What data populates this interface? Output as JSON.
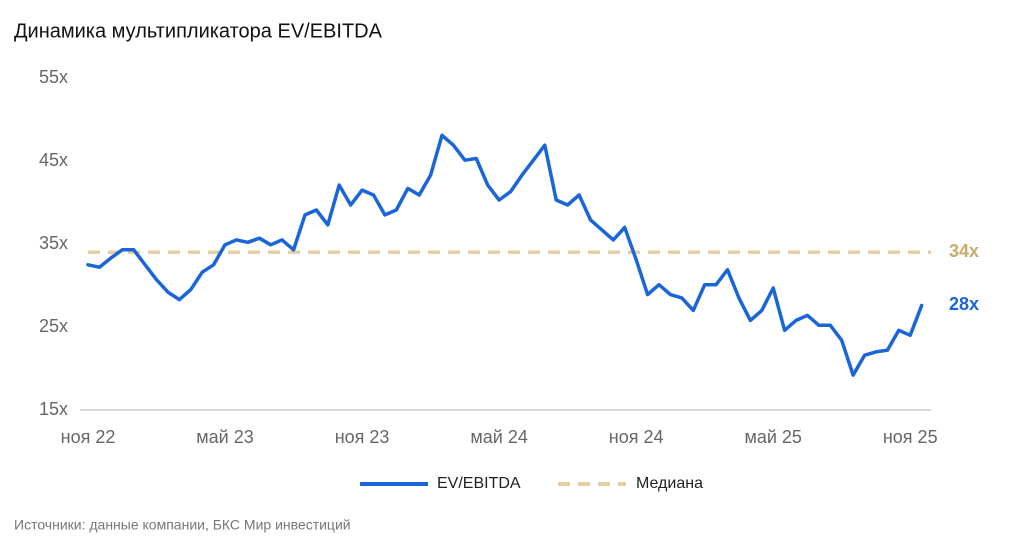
{
  "chart_data": {
    "type": "line",
    "title": "Динамика мультипликатора EV/EBITDA",
    "source": "Источники: данные компании, БКС Мир инвестиций",
    "categories": [
      "ноя 22",
      null,
      null,
      null,
      null,
      null,
      null,
      null,
      null,
      null,
      null,
      null,
      "май 23",
      null,
      null,
      null,
      null,
      null,
      null,
      null,
      null,
      null,
      null,
      null,
      "ноя 23",
      null,
      null,
      null,
      null,
      null,
      null,
      null,
      null,
      null,
      null,
      null,
      "май 24",
      null,
      null,
      null,
      null,
      null,
      null,
      null,
      null,
      null,
      null,
      null,
      "ноя 24",
      null,
      null,
      null,
      null,
      null,
      null,
      null,
      null,
      null,
      null,
      null,
      "май 25",
      null,
      null,
      null,
      null,
      null,
      null,
      null,
      null,
      null,
      null,
      null,
      "ноя 25",
      null
    ],
    "series": [
      {
        "name": "EV/EBITDA",
        "color": "#1a66d9",
        "values": [
          32.5,
          32.2,
          33.3,
          34.3,
          34.3,
          32.5,
          30.7,
          29.2,
          28.3,
          29.5,
          31.6,
          32.5,
          34.9,
          35.5,
          35.2,
          35.7,
          34.9,
          35.5,
          34.3,
          38.5,
          39.1,
          37.3,
          42.1,
          39.7,
          41.5,
          40.9,
          38.5,
          39.1,
          41.7,
          40.9,
          43.3,
          48.1,
          46.9,
          45.1,
          45.3,
          42.1,
          40.3,
          41.3,
          43.3,
          45.1,
          46.9,
          40.3,
          39.7,
          40.9,
          37.9,
          36.7,
          35.5,
          37.0,
          33.1,
          28.9,
          30.1,
          28.9,
          28.5,
          27.0,
          30.1,
          30.1,
          31.9,
          28.5,
          25.8,
          27.0,
          29.7,
          24.6,
          25.8,
          26.4,
          25.2,
          25.2,
          23.4,
          19.2,
          21.6,
          22.0,
          22.2,
          24.6,
          24.0,
          27.6
        ],
        "end_label": "28x"
      }
    ],
    "median": {
      "name": "Медиана",
      "value": 34,
      "value_label": "34x",
      "color": "#e3cfa3"
    },
    "ylim": [
      15,
      55
    ],
    "yticks": [
      {
        "value": 15,
        "label": "15x"
      },
      {
        "value": 25,
        "label": "25x"
      },
      {
        "value": 35,
        "label": "35x"
      },
      {
        "value": 45,
        "label": "45x"
      },
      {
        "value": 55,
        "label": "55x"
      }
    ],
    "grid": false
  }
}
